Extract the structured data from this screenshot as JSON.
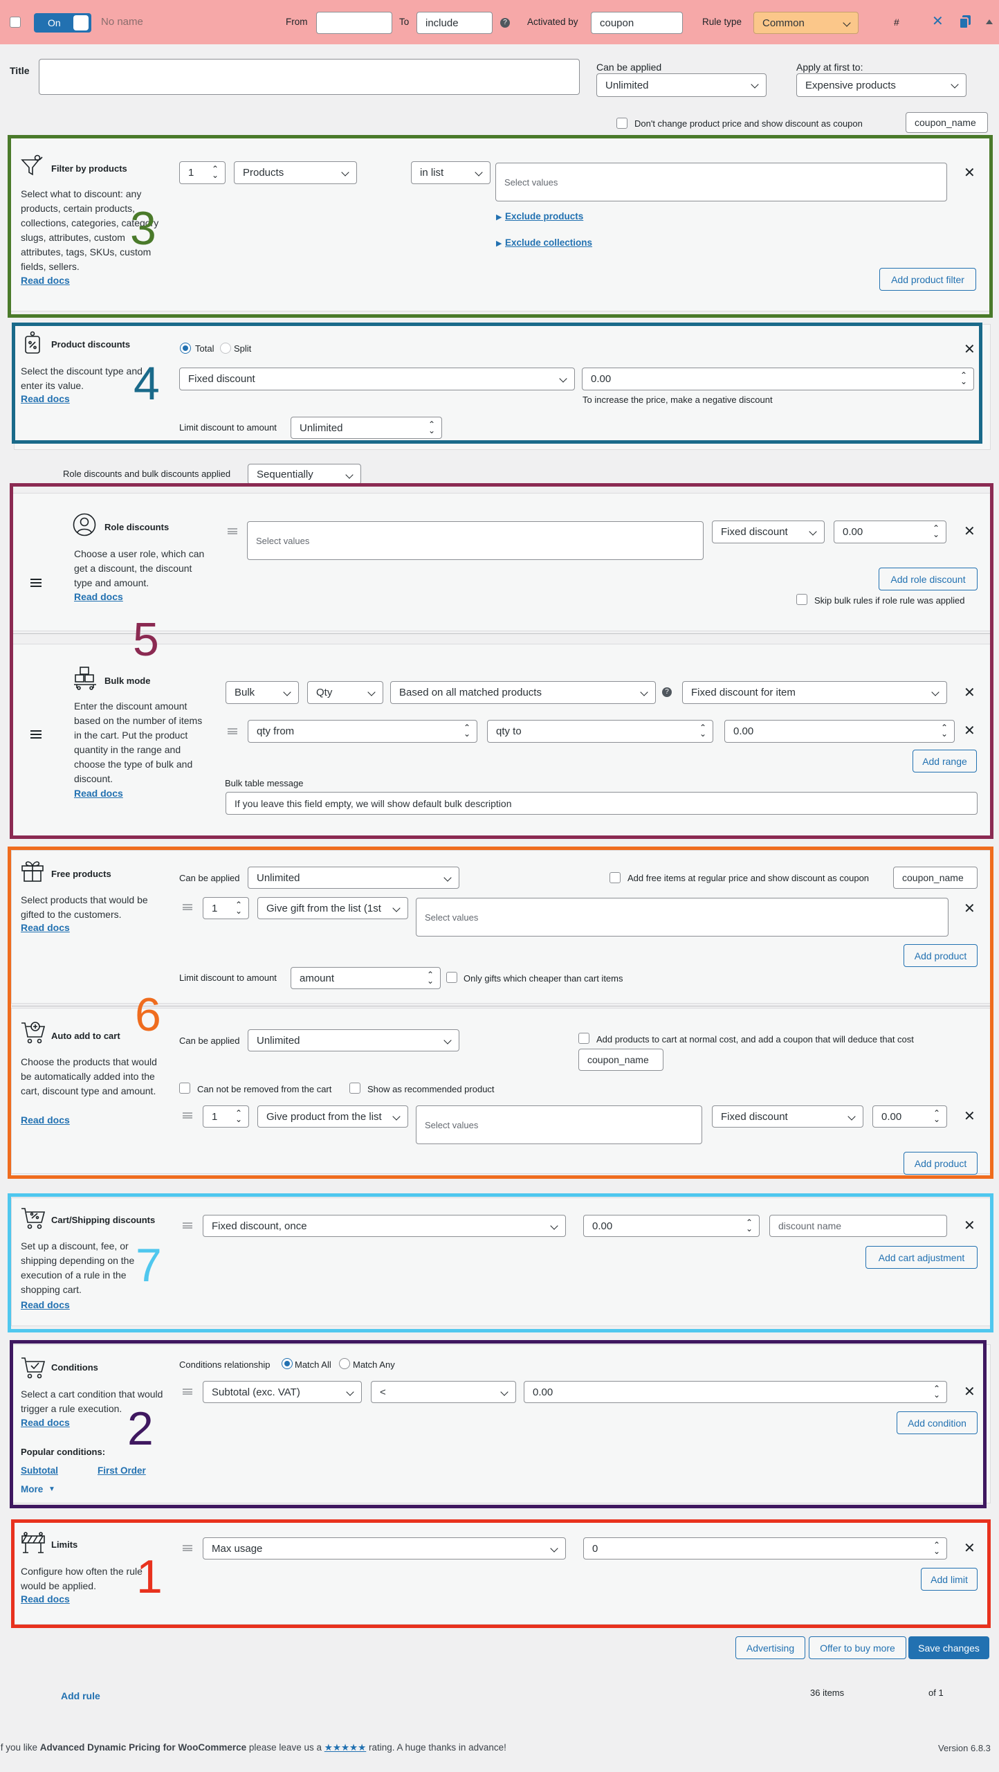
{
  "header": {
    "toggle_label": "On",
    "rule_name": "No name",
    "from_label": "From",
    "from_value": "",
    "to_label": "To",
    "to_value": "include",
    "activated_by_label": "Activated by",
    "activated_by_value": "coupon",
    "rule_type_label": "Rule type",
    "rule_type_value": "Common",
    "hash": "#"
  },
  "title_row": {
    "title_label": "Title",
    "title_value": "",
    "can_be_applied_label": "Can be applied",
    "can_be_applied_value": "Unlimited",
    "apply_first_label": "Apply at first to:",
    "apply_first_value": "Expensive products",
    "coupon_checkbox_label": "Don't change product price and show discount as coupon",
    "coupon_name": "coupon_name"
  },
  "filter": {
    "title": "Filter by products",
    "desc": "Select what to discount: any products, certain products, collections, categories, category slugs, attributes, custom attributes, tags, SKUs, custom fields, sellers.",
    "read_docs": "Read docs",
    "qty": "1",
    "type": "Products",
    "operator": "in list",
    "placeholder": "Select values",
    "exclude_products": "Exclude products",
    "exclude_collections": "Exclude collections",
    "add_button": "Add product filter",
    "marker": "3"
  },
  "product_discounts": {
    "title": "Product discounts",
    "desc": "Select the discount type and enter its value.",
    "read_docs": "Read docs",
    "total": "Total",
    "split": "Split",
    "type": "Fixed discount",
    "value": "0.00",
    "hint": "To increase the price, make a negative discount",
    "limit_label": "Limit discount to amount",
    "limit_value": "Unlimited",
    "marker": "4"
  },
  "sequence": {
    "label": "Role discounts and bulk discounts applied",
    "value": "Sequentially"
  },
  "role": {
    "title": "Role discounts",
    "desc": "Choose a user role, which can get a discount, the discount type and amount.",
    "read_docs": "Read docs",
    "placeholder": "Select values",
    "type": "Fixed discount",
    "value": "0.00",
    "add_button": "Add role discount",
    "skip_label": "Skip bulk rules if role rule was applied",
    "marker": "5"
  },
  "bulk": {
    "title": "Bulk mode",
    "desc": "Enter the discount amount based on the number of items in the cart. Put the product quantity in the range and choose the type of bulk and discount.",
    "read_docs": "Read docs",
    "mode": "Bulk",
    "measure": "Qty",
    "based_on": "Based on all matched products",
    "discount_type": "Fixed discount for item",
    "qty_from": "qty from",
    "qty_to": "qty to",
    "value": "0.00",
    "add_range": "Add range",
    "message_label": "Bulk table message",
    "message_value": "If you leave this field empty, we will show default bulk description"
  },
  "free": {
    "title": "Free products",
    "desc": "Select products that would be gifted to the customers.",
    "read_docs": "Read docs",
    "can_be_applied_label": "Can be applied",
    "can_be_applied_value": "Unlimited",
    "regular_price_label": "Add free items at regular price and show discount as coupon",
    "coupon_name": "coupon_name",
    "qty": "1",
    "gift_type": "Give gift from the list (1st",
    "placeholder": "Select values",
    "add_button": "Add product",
    "limit_label": "Limit discount to amount",
    "limit_value": "amount",
    "cheaper_label": "Only gifts which cheaper than cart items",
    "marker": "6"
  },
  "auto": {
    "title": "Auto add to cart",
    "desc": "Choose the products that would be automatically added into the cart, discount type and amount.",
    "read_docs": "Read docs",
    "can_be_applied_label": "Can be applied",
    "can_be_applied_value": "Unlimited",
    "normal_cost_label": "Add products to cart at normal cost, and add a coupon that will deduce that cost",
    "coupon_name": "coupon_name",
    "not_removed_label": "Can not be removed from the cart",
    "recommended_label": "Show as recommended product",
    "qty": "1",
    "product_type": "Give product from the list",
    "placeholder": "Select values",
    "discount_type": "Fixed discount",
    "value": "0.00",
    "add_button": "Add product"
  },
  "cart": {
    "title": "Cart/Shipping discounts",
    "desc": "Set up a discount, fee, or shipping depending on the execution of a rule in the shopping cart.",
    "read_docs": "Read docs",
    "type": "Fixed discount, once",
    "value": "0.00",
    "name_placeholder": "discount name",
    "add_button": "Add cart adjustment",
    "marker": "7"
  },
  "conditions": {
    "title": "Conditions",
    "desc": "Select a cart condition that would trigger a rule execution.",
    "read_docs": "Read docs",
    "relationship_label": "Conditions relationship",
    "match_all": "Match All",
    "match_any": "Match Any",
    "field": "Subtotal (exc. VAT)",
    "operator": "<",
    "value": "0.00",
    "add_button": "Add condition",
    "popular_label": "Popular conditions:",
    "popular_1": "Subtotal",
    "popular_2": "First Order",
    "more": "More",
    "marker": "2"
  },
  "limits": {
    "title": "Limits",
    "desc": "Configure how often the rule would be applied.",
    "read_docs": "Read docs",
    "type": "Max usage",
    "value": "0",
    "add_button": "Add limit",
    "marker": "1"
  },
  "actions": {
    "advertising": "Advertising",
    "offer": "Offer to buy more",
    "save": "Save changes"
  },
  "footer": {
    "add_rule": "Add rule",
    "items": "36 items",
    "of": "of 1",
    "rating_pre": "If you like",
    "plugin": "Advanced Dynamic Pricing for WooCommerce",
    "rating_mid": "please leave us a",
    "stars": "★★★★★",
    "rating_post": "rating. A huge thanks in advance!",
    "version": "Version 6.8.3"
  },
  "colors": {
    "green": "#4a7a2a",
    "teal": "#1a6a8a",
    "maroon": "#8b2a52",
    "orange": "#ef6c1e",
    "cyan": "#4fc7ee",
    "purple": "#3f1860",
    "red": "#e8321e",
    "wp_blue": "#2271b1"
  }
}
